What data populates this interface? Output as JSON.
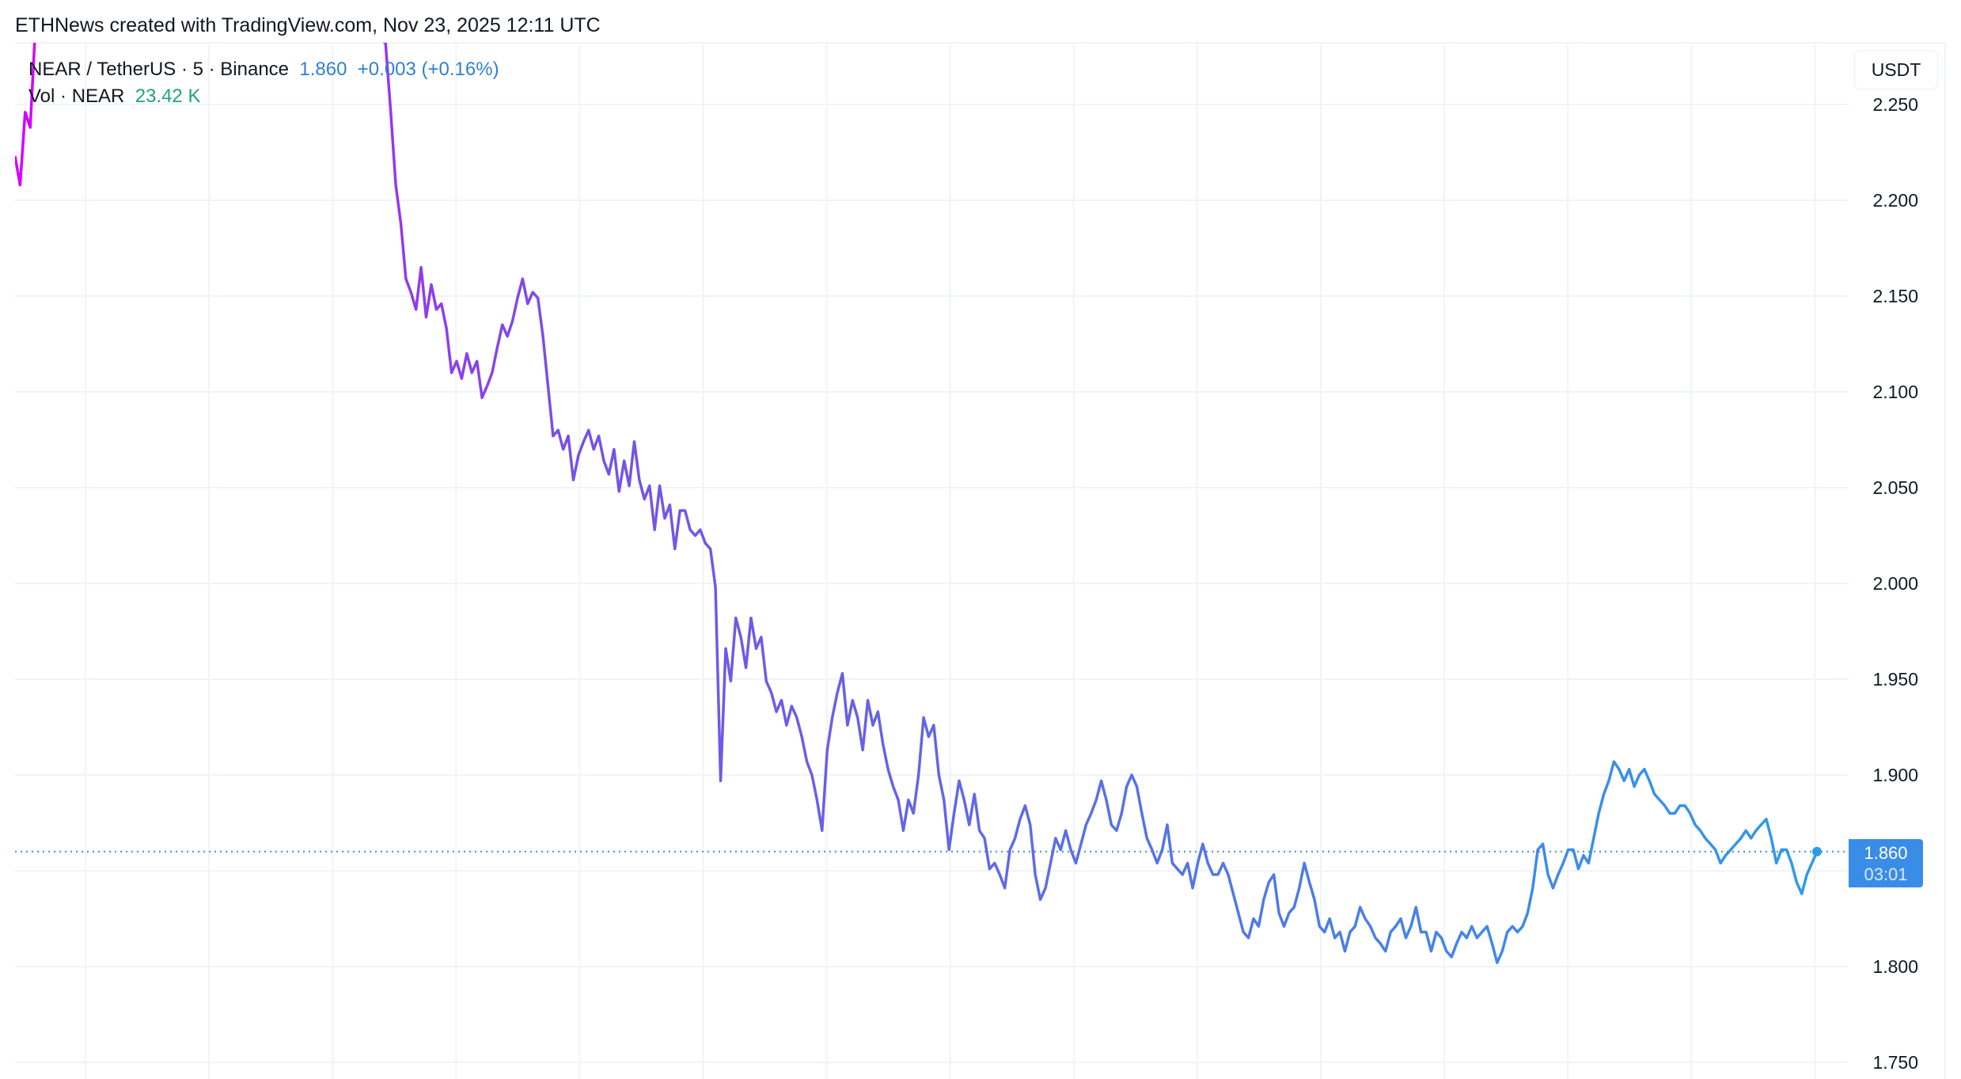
{
  "header": {
    "text": "ETHNews created with TradingView.com, Nov 23, 2025 12:11 UTC"
  },
  "legend": {
    "symbol": "NEAR / TetherUS · 5 · Binance",
    "last": "1.860",
    "change": "+0.003 (+0.16%)",
    "vol_label": "Vol · NEAR",
    "vol_value": "23.42 K"
  },
  "axis": {
    "currency": "USDT"
  },
  "price_label": {
    "price": "1.860",
    "countdown": "03:01"
  },
  "colors": {
    "line_start": "#d400ff",
    "line_mid": "#7a4fe6",
    "line_end": "#2e9be8",
    "price_label": "#3a8de6",
    "grid": "#f0f3fa"
  },
  "chart_data": {
    "type": "line",
    "title": "",
    "xlabel": "",
    "ylabel": "",
    "ylim": [
      1.75,
      2.284
    ],
    "grid": true,
    "yticks": [
      "2.250",
      "2.200",
      "2.150",
      "2.100",
      "2.050",
      "2.000",
      "1.950",
      "1.900",
      "1.850",
      "1.800",
      "1.750"
    ],
    "last_value": 1.86,
    "values": [
      2.223,
      2.208,
      2.246,
      2.238,
      2.29,
      null,
      null,
      null,
      null,
      null,
      null,
      null,
      null,
      null,
      null,
      null,
      null,
      null,
      null,
      null,
      null,
      null,
      null,
      null,
      null,
      null,
      null,
      null,
      null,
      null,
      null,
      null,
      null,
      null,
      null,
      null,
      null,
      null,
      null,
      null,
      null,
      null,
      null,
      null,
      null,
      null,
      null,
      null,
      null,
      null,
      null,
      null,
      null,
      null,
      null,
      null,
      null,
      null,
      null,
      null,
      null,
      null,
      null,
      null,
      null,
      null,
      null,
      null,
      null,
      null,
      null,
      2.29,
      2.284,
      2.282,
      2.247,
      2.208,
      2.188,
      2.159,
      2.152,
      2.143,
      2.165,
      2.139,
      2.156,
      2.143,
      2.146,
      2.133,
      2.11,
      2.116,
      2.107,
      2.12,
      2.11,
      2.116,
      2.097,
      2.103,
      2.11,
      2.123,
      2.135,
      2.129,
      2.137,
      2.149,
      2.159,
      2.146,
      2.152,
      2.149,
      2.129,
      2.103,
      2.077,
      2.08,
      2.07,
      2.077,
      2.054,
      2.067,
      2.074,
      2.08,
      2.07,
      2.077,
      2.064,
      2.057,
      2.07,
      2.048,
      2.064,
      2.051,
      2.074,
      2.054,
      2.044,
      2.051,
      2.028,
      2.051,
      2.034,
      2.041,
      2.018,
      2.038,
      2.038,
      2.028,
      2.025,
      2.028,
      2.021,
      2.018,
      1.998,
      1.897,
      1.966,
      1.949,
      1.982,
      1.972,
      1.956,
      1.982,
      1.966,
      1.972,
      1.949,
      1.943,
      1.933,
      1.939,
      1.926,
      1.936,
      1.93,
      1.92,
      1.907,
      1.9,
      1.887,
      1.871,
      1.913,
      1.93,
      1.943,
      1.953,
      1.926,
      1.939,
      1.93,
      1.913,
      1.939,
      1.926,
      1.933,
      1.916,
      1.903,
      1.894,
      1.887,
      1.871,
      1.887,
      1.88,
      1.9,
      1.93,
      1.92,
      1.926,
      1.9,
      1.887,
      1.861,
      1.88,
      1.897,
      1.887,
      1.874,
      1.89,
      1.871,
      1.867,
      1.851,
      1.854,
      1.848,
      1.841,
      1.861,
      1.867,
      1.877,
      1.884,
      1.874,
      1.848,
      1.835,
      1.841,
      1.854,
      1.867,
      1.861,
      1.871,
      1.861,
      1.854,
      1.864,
      1.874,
      1.88,
      1.887,
      1.897,
      1.887,
      1.874,
      1.871,
      1.88,
      1.894,
      1.9,
      1.894,
      1.88,
      1.867,
      1.861,
      1.854,
      1.861,
      1.874,
      1.854,
      1.851,
      1.848,
      1.854,
      1.841,
      1.854,
      1.864,
      1.854,
      1.848,
      1.848,
      1.854,
      1.848,
      1.838,
      1.828,
      1.818,
      1.815,
      1.825,
      1.821,
      1.835,
      1.844,
      1.848,
      1.828,
      1.821,
      1.828,
      1.831,
      1.841,
      1.854,
      1.844,
      1.835,
      1.821,
      1.818,
      1.825,
      1.815,
      1.818,
      1.808,
      1.818,
      1.821,
      1.831,
      1.825,
      1.821,
      1.815,
      1.812,
      1.808,
      1.818,
      1.821,
      1.825,
      1.815,
      1.821,
      1.831,
      1.818,
      1.818,
      1.808,
      1.818,
      1.815,
      1.808,
      1.805,
      1.812,
      1.818,
      1.815,
      1.821,
      1.815,
      1.818,
      1.821,
      1.812,
      1.802,
      1.808,
      1.818,
      1.821,
      1.818,
      1.821,
      1.828,
      1.841,
      1.861,
      1.864,
      1.848,
      1.841,
      1.848,
      1.854,
      1.861,
      1.861,
      1.851,
      1.858,
      1.854,
      1.867,
      1.88,
      1.89,
      1.897,
      1.907,
      1.903,
      1.897,
      1.903,
      1.894,
      1.9,
      1.903,
      1.897,
      1.89,
      1.887,
      1.884,
      1.88,
      1.88,
      1.884,
      1.884,
      1.88,
      1.874,
      1.871,
      1.867,
      1.864,
      1.861,
      1.854,
      1.858,
      1.861,
      1.864,
      1.867,
      1.871,
      1.867,
      1.871,
      1.874,
      1.877,
      1.867,
      1.854,
      1.861,
      1.861,
      1.854,
      1.844,
      1.838,
      1.848,
      1.854,
      1.86
    ]
  }
}
